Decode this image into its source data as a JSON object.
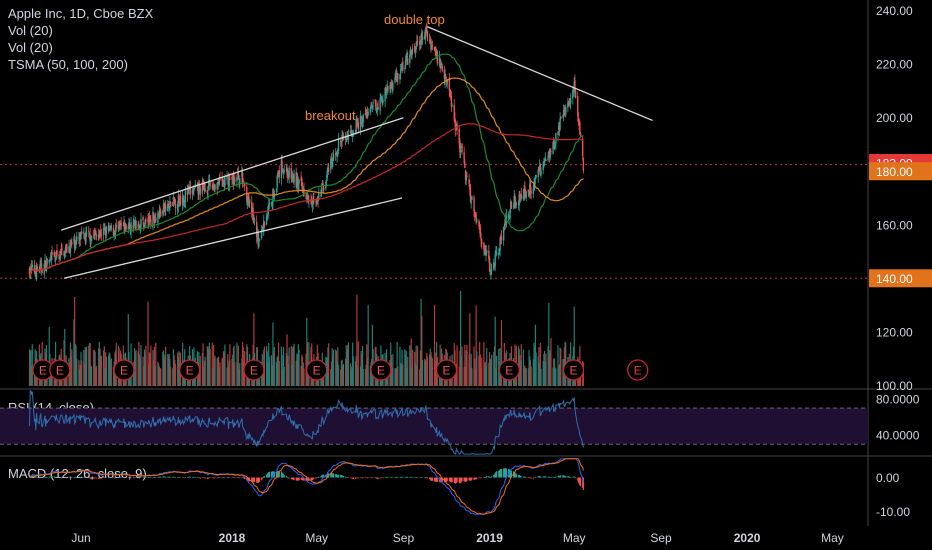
{
  "legend": {
    "symbol": "Apple Inc, 1D, Cboe BZX",
    "vol1": "Vol (20)",
    "vol2": "Vol (20)",
    "tsma": "TSMA (50, 100, 200)"
  },
  "rsi_label": "RSI (14, close)",
  "macd_label": "MACD (12, 26, close, 9)",
  "annotations": {
    "double_top": "double top",
    "breakout": "breakout"
  },
  "colors": {
    "background": "#000000",
    "up": "#26a69a",
    "down": "#ef5350",
    "sma50": "#1b8a2f",
    "sma100": "#e08a1e",
    "sma200": "#c62828",
    "rsi": "#2f6fae",
    "rsi_band": "#1f0f33",
    "trendline": "#d9d9d9",
    "annotation": "#f0882c"
  },
  "chart_data": [
    {
      "type": "candlestick",
      "title": "Apple Inc, 1D, Cboe BZX",
      "y_ticks": [
        "240.00",
        "220.00",
        "200.00",
        "180.00",
        "160.00",
        "140.00",
        "120.00",
        "100.00"
      ],
      "ylim": [
        99,
        244
      ],
      "x_ticks": [
        "Jun",
        "2018",
        "May",
        "Sep",
        "2019",
        "May",
        "Sep",
        "2020",
        "May"
      ],
      "price_labels": [
        {
          "value": 183.09,
          "label": "183.09",
          "color": "#e53935"
        },
        {
          "value": 180.0,
          "label": "180.00",
          "color": "#e0731c"
        },
        {
          "value": 140.0,
          "label": "140.00",
          "color": "#e0731c"
        }
      ],
      "horizontal_levels": [
        182.5,
        140.0
      ],
      "series": [
        {
          "name": "Close",
          "key_dates": [
            "2017-04-01",
            "2017-06-01",
            "2017-09-01",
            "2017-11-01",
            "2018-01-15",
            "2018-02-08",
            "2018-03-12",
            "2018-05-01",
            "2018-06-01",
            "2018-08-01",
            "2018-10-03",
            "2018-11-01",
            "2018-12-01",
            "2019-01-03",
            "2019-02-01",
            "2019-03-01",
            "2019-04-01",
            "2019-05-01",
            "2019-05-14"
          ],
          "key_values": [
            143,
            155,
            161,
            172,
            178,
            154,
            182,
            168,
            190,
            207,
            232,
            215,
            175,
            142,
            168,
            174,
            190,
            212,
            182
          ]
        },
        {
          "name": "SMA 50",
          "values_desc": "trails price"
        },
        {
          "name": "SMA 100"
        },
        {
          "name": "SMA 200"
        }
      ],
      "trendlines": [
        {
          "from": [
            "2017-05-04",
            158
          ],
          "to": [
            "2018-09-01",
            200
          ]
        },
        {
          "from": [
            "2017-05-08",
            140
          ],
          "to": [
            "2018-08-30",
            170
          ]
        },
        {
          "from": [
            "2018-10-05",
            234
          ],
          "to": [
            "2019-08-20",
            199
          ]
        }
      ],
      "earnings_markers": [
        "2017-04-08",
        "2017-05-02",
        "2017-08-01",
        "2017-11-02",
        "2018-02-01",
        "2018-05-01",
        "2018-07-31",
        "2018-11-01",
        "2019-01-29",
        "2019-04-30",
        "2019-07-30"
      ]
    },
    {
      "type": "line",
      "title": "RSI (14, close)",
      "y_ticks": [
        "80.0000",
        "40.0000"
      ],
      "band": [
        30,
        70
      ],
      "ylim": [
        18,
        90
      ]
    },
    {
      "type": "histogram+line",
      "title": "MACD (12, 26, close, 9)",
      "y_ticks": [
        "0.00",
        "-10.00"
      ],
      "ylim": [
        -13,
        6
      ]
    }
  ]
}
